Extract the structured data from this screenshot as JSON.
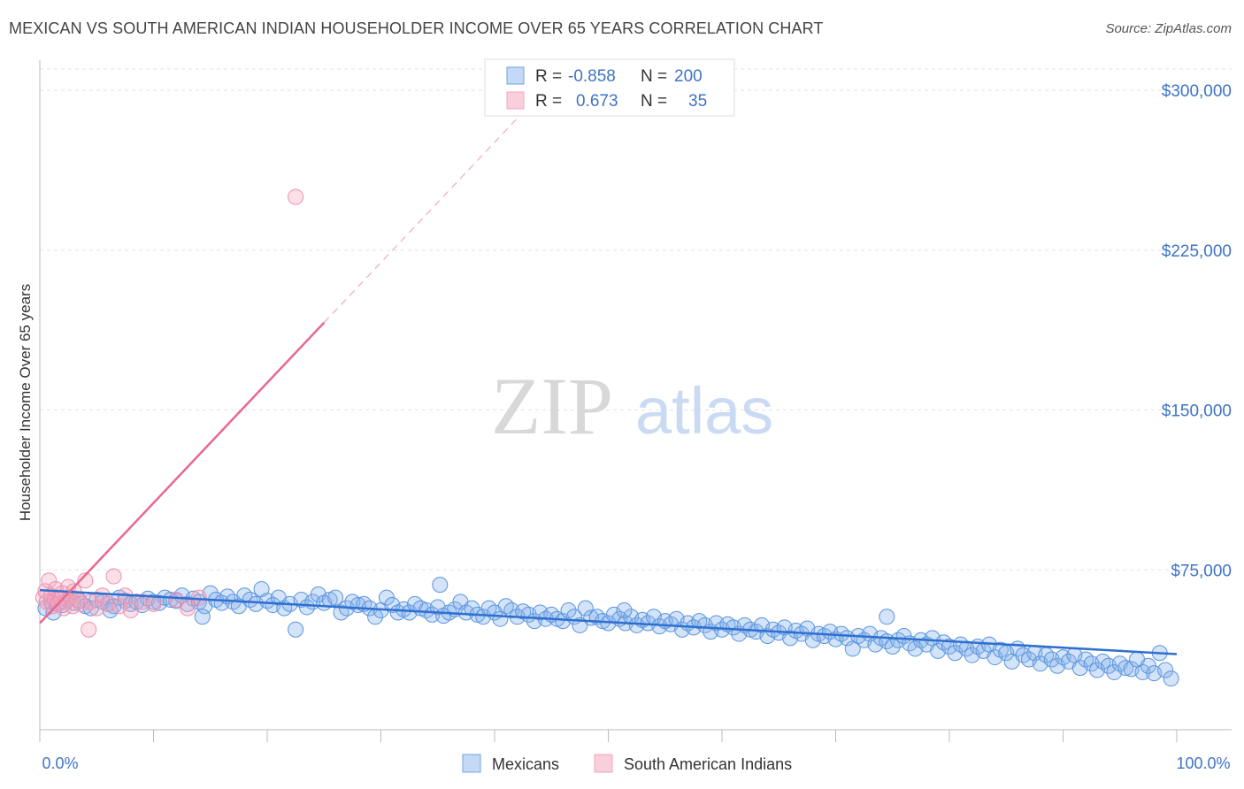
{
  "title": "MEXICAN VS SOUTH AMERICAN INDIAN HOUSEHOLDER INCOME OVER 65 YEARS CORRELATION CHART",
  "source": "Source: ZipAtlas.com",
  "watermark": {
    "zip": "ZIP",
    "atlas": "atlas"
  },
  "colors": {
    "blue": "#6fa3e6",
    "blue_line": "#2f6fd0",
    "pink": "#f4a6be",
    "pink_line": "#e8688f",
    "axis_text": "#3f74c3"
  },
  "legend_top": {
    "rows": [
      {
        "r_label": "R =",
        "r_value": "-0.858",
        "n_label": "N =",
        "n_value": "200"
      },
      {
        "r_label": "R =",
        "r_value": "0.673",
        "n_label": "N =",
        "n_value": "35"
      }
    ]
  },
  "chart_data": {
    "type": "scatter",
    "title": "MEXICAN VS SOUTH AMERICAN INDIAN HOUSEHOLDER INCOME OVER 65 YEARS CORRELATION CHART",
    "xlabel": "",
    "ylabel": "Householder Income Over 65 years",
    "xlim": [
      0,
      100
    ],
    "ylim": [
      0,
      310000
    ],
    "x_tick_labels": [
      "0.0%",
      "100.0%"
    ],
    "y_ticks": [
      75000,
      150000,
      225000,
      300000
    ],
    "y_tick_labels": [
      "$75,000",
      "$150,000",
      "$225,000",
      "$300,000"
    ],
    "grid": true,
    "legend_position": "bottom-center",
    "series": [
      {
        "name": "Mexicans",
        "color": "#6fa3e6",
        "r": -0.858,
        "n": 200,
        "trend": {
          "x": [
            0,
            100
          ],
          "y": [
            65500,
            35500
          ]
        },
        "points": [
          [
            0.5,
            57000
          ],
          [
            1,
            60000
          ],
          [
            1.5,
            59000
          ],
          [
            2,
            58500
          ],
          [
            2.5,
            61000
          ],
          [
            3,
            59500
          ],
          [
            3.5,
            60500
          ],
          [
            4,
            58000
          ],
          [
            4.5,
            57000
          ],
          [
            5,
            61000
          ],
          [
            5.5,
            60000
          ],
          [
            6,
            59000
          ],
          [
            6.5,
            58000
          ],
          [
            7,
            62000
          ],
          [
            7.5,
            60500
          ],
          [
            8,
            59000
          ],
          [
            8.5,
            60000
          ],
          [
            9,
            58500
          ],
          [
            9.5,
            61500
          ],
          [
            10,
            60000
          ],
          [
            10.5,
            59500
          ],
          [
            11,
            62000
          ],
          [
            11.5,
            61000
          ],
          [
            12,
            60500
          ],
          [
            12.5,
            63000
          ],
          [
            13,
            59000
          ],
          [
            13.5,
            61500
          ],
          [
            14,
            60000
          ],
          [
            14.5,
            58000
          ],
          [
            15,
            64000
          ],
          [
            15.5,
            61000
          ],
          [
            16,
            59500
          ],
          [
            16.5,
            62500
          ],
          [
            17,
            60000
          ],
          [
            17.5,
            58000
          ],
          [
            18,
            63000
          ],
          [
            18.5,
            61000
          ],
          [
            19,
            59000
          ],
          [
            19.5,
            66000
          ],
          [
            20,
            60500
          ],
          [
            20.5,
            58500
          ],
          [
            21,
            62000
          ],
          [
            21.5,
            57000
          ],
          [
            22,
            59000
          ],
          [
            22.5,
            47000
          ],
          [
            23,
            61000
          ],
          [
            23.5,
            57500
          ],
          [
            24,
            60000
          ],
          [
            24.5,
            63500
          ],
          [
            25,
            59500
          ],
          [
            25.5,
            61000
          ],
          [
            26,
            62000
          ],
          [
            26.5,
            55000
          ],
          [
            27,
            57000
          ],
          [
            27.5,
            60000
          ],
          [
            28,
            58500
          ],
          [
            28.5,
            59000
          ],
          [
            29,
            57000
          ],
          [
            29.5,
            53000
          ],
          [
            30,
            56000
          ],
          [
            30.5,
            62000
          ],
          [
            31,
            58500
          ],
          [
            31.5,
            55000
          ],
          [
            32,
            56500
          ],
          [
            32.5,
            55000
          ],
          [
            33,
            59000
          ],
          [
            33.5,
            57000
          ],
          [
            34,
            56000
          ],
          [
            34.5,
            54000
          ],
          [
            35,
            57500
          ],
          [
            35.5,
            53500
          ],
          [
            36,
            55000
          ],
          [
            36.5,
            56500
          ],
          [
            37,
            60000
          ],
          [
            37.5,
            55000
          ],
          [
            38,
            57000
          ],
          [
            38.5,
            54000
          ],
          [
            39,
            53000
          ],
          [
            39.5,
            57000
          ],
          [
            40,
            55000
          ],
          [
            40.5,
            52000
          ],
          [
            41,
            58000
          ],
          [
            41.5,
            56000
          ],
          [
            42,
            53000
          ],
          [
            42.5,
            55500
          ],
          [
            43,
            54000
          ],
          [
            43.5,
            51000
          ],
          [
            44,
            55000
          ],
          [
            44.5,
            52000
          ],
          [
            45,
            54000
          ],
          [
            45.5,
            52000
          ],
          [
            46,
            51000
          ],
          [
            46.5,
            56000
          ],
          [
            47,
            53000
          ],
          [
            47.5,
            49000
          ],
          [
            48,
            57000
          ],
          [
            48.5,
            52500
          ],
          [
            49,
            53000
          ],
          [
            49.5,
            51000
          ],
          [
            50,
            50000
          ],
          [
            50.5,
            54000
          ],
          [
            51,
            52000
          ],
          [
            51.5,
            50000
          ],
          [
            52,
            53000
          ],
          [
            52.5,
            49000
          ],
          [
            53,
            51500
          ],
          [
            53.5,
            50000
          ],
          [
            54,
            53000
          ],
          [
            54.5,
            48500
          ],
          [
            55,
            51000
          ],
          [
            55.5,
            49500
          ],
          [
            56,
            52000
          ],
          [
            56.5,
            47000
          ],
          [
            57,
            50000
          ],
          [
            57.5,
            48000
          ],
          [
            58,
            51000
          ],
          [
            58.5,
            49000
          ],
          [
            59,
            46000
          ],
          [
            59.5,
            50000
          ],
          [
            60,
            47000
          ],
          [
            60.5,
            49500
          ],
          [
            61,
            48000
          ],
          [
            61.5,
            45000
          ],
          [
            62,
            49000
          ],
          [
            62.5,
            47000
          ],
          [
            63,
            46000
          ],
          [
            63.5,
            49000
          ],
          [
            64,
            44000
          ],
          [
            64.5,
            47000
          ],
          [
            65,
            45500
          ],
          [
            65.5,
            48000
          ],
          [
            66,
            43000
          ],
          [
            66.5,
            46500
          ],
          [
            67,
            45000
          ],
          [
            67.5,
            47500
          ],
          [
            68,
            42000
          ],
          [
            68.5,
            45000
          ],
          [
            69,
            44000
          ],
          [
            69.5,
            46000
          ],
          [
            70,
            42500
          ],
          [
            70.5,
            45000
          ],
          [
            71,
            43000
          ],
          [
            71.5,
            38000
          ],
          [
            72,
            44000
          ],
          [
            72.5,
            42000
          ],
          [
            73,
            45000
          ],
          [
            73.5,
            40000
          ],
          [
            74,
            43000
          ],
          [
            74.5,
            41500
          ],
          [
            75,
            39000
          ],
          [
            75.5,
            42000
          ],
          [
            76,
            44000
          ],
          [
            76.5,
            40500
          ],
          [
            77,
            38000
          ],
          [
            77.5,
            42000
          ],
          [
            78,
            40000
          ],
          [
            78.5,
            43000
          ],
          [
            79,
            37000
          ],
          [
            79.5,
            41000
          ],
          [
            80,
            39000
          ],
          [
            80.5,
            36000
          ],
          [
            81,
            40000
          ],
          [
            81.5,
            38000
          ],
          [
            82,
            35000
          ],
          [
            82.5,
            39000
          ],
          [
            83,
            37000
          ],
          [
            83.5,
            40000
          ],
          [
            84,
            34000
          ],
          [
            84.5,
            37500
          ],
          [
            85,
            36000
          ],
          [
            85.5,
            32000
          ],
          [
            86,
            38000
          ],
          [
            86.5,
            35000
          ],
          [
            87,
            33000
          ],
          [
            87.5,
            36000
          ],
          [
            88,
            31000
          ],
          [
            88.5,
            35000
          ],
          [
            89,
            33000
          ],
          [
            89.5,
            30000
          ],
          [
            90,
            34000
          ],
          [
            90.5,
            32000
          ],
          [
            91,
            35000
          ],
          [
            91.5,
            29000
          ],
          [
            92,
            33000
          ],
          [
            92.5,
            31000
          ],
          [
            93,
            28000
          ],
          [
            93.5,
            32000
          ],
          [
            94,
            30000
          ],
          [
            94.5,
            27000
          ],
          [
            95,
            31000
          ],
          [
            95.5,
            29000
          ],
          [
            96,
            28500
          ],
          [
            96.5,
            33000
          ],
          [
            97,
            27000
          ],
          [
            97.5,
            30000
          ],
          [
            98,
            26500
          ],
          [
            98.5,
            36000
          ],
          [
            99,
            28000
          ],
          [
            99.5,
            24000
          ],
          [
            1.2,
            55000
          ],
          [
            6.2,
            56000
          ],
          [
            14.3,
            53000
          ],
          [
            35.2,
            68000
          ],
          [
            51.4,
            56000
          ],
          [
            74.5,
            53000
          ]
        ]
      },
      {
        "name": "South American Indians",
        "color": "#f4a6be",
        "r": 0.673,
        "n": 35,
        "trend": {
          "x": [
            0,
            100
          ],
          "y": [
            50000,
            614000
          ]
        },
        "trend_solid_to_x": 25,
        "points": [
          [
            0.3,
            62000
          ],
          [
            0.5,
            65000
          ],
          [
            0.6,
            60000
          ],
          [
            0.8,
            70000
          ],
          [
            1,
            63000
          ],
          [
            1.1,
            58000
          ],
          [
            1.3,
            61000
          ],
          [
            1.4,
            66000
          ],
          [
            1.6,
            59000
          ],
          [
            1.8,
            62000
          ],
          [
            2,
            64000
          ],
          [
            2.1,
            57000
          ],
          [
            2.3,
            60000
          ],
          [
            2.5,
            67000
          ],
          [
            2.7,
            62000
          ],
          [
            2.9,
            58000
          ],
          [
            3,
            65000
          ],
          [
            3.3,
            61000
          ],
          [
            3.6,
            59000
          ],
          [
            4,
            70000
          ],
          [
            4.5,
            60000
          ],
          [
            5,
            57000
          ],
          [
            5.5,
            63000
          ],
          [
            6,
            59000
          ],
          [
            6.5,
            72000
          ],
          [
            7,
            58000
          ],
          [
            7.5,
            63000
          ],
          [
            8,
            56000
          ],
          [
            9,
            60000
          ],
          [
            10,
            59000
          ],
          [
            12,
            61000
          ],
          [
            13,
            57000
          ],
          [
            14,
            62000
          ],
          [
            4.3,
            47000
          ],
          [
            22.5,
            250000
          ]
        ]
      }
    ]
  },
  "bottom_legend": [
    {
      "label": "Mexicans"
    },
    {
      "label": "South American Indians"
    }
  ]
}
